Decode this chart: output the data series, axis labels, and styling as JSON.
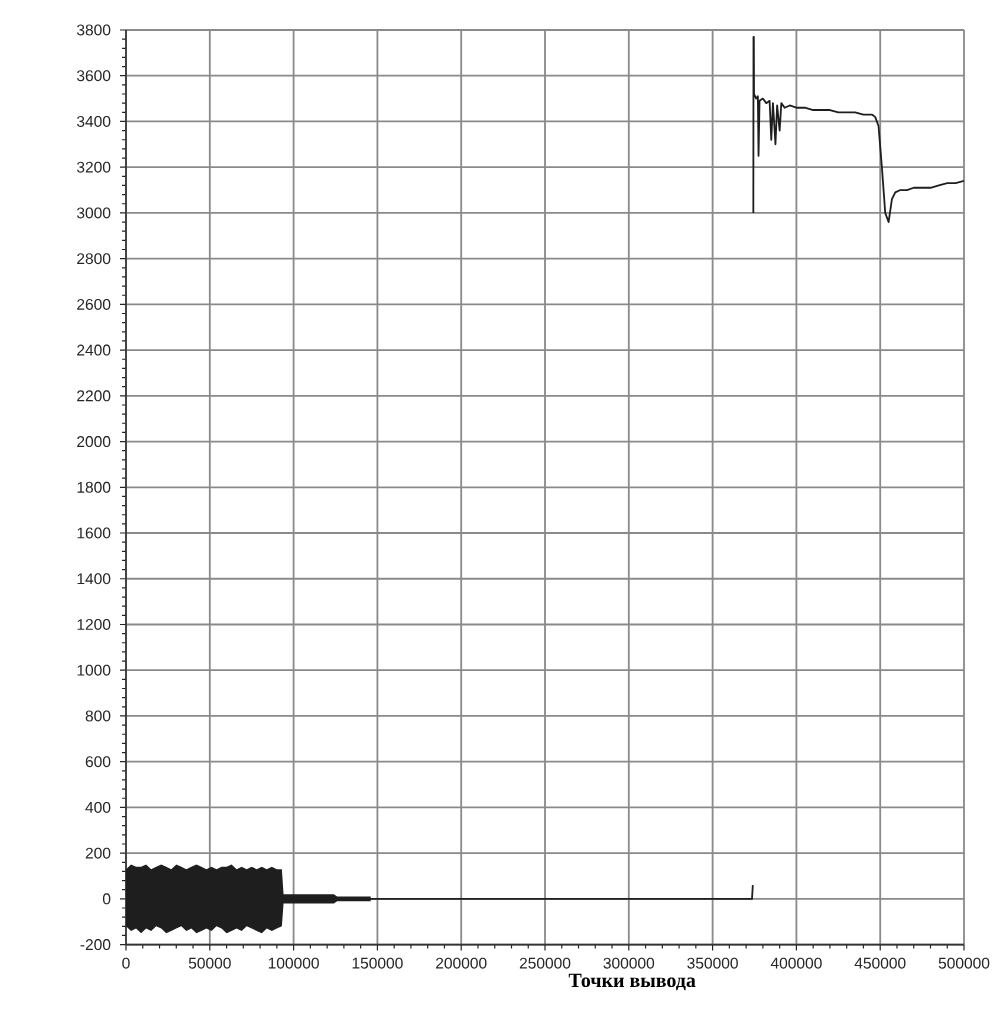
{
  "chart_data": {
    "type": "line",
    "xlabel": "Точки вывода",
    "x": [
      0,
      3000,
      6000,
      9000,
      12000,
      15000,
      18000,
      21000,
      24000,
      27000,
      30000,
      33000,
      36000,
      39000,
      42000,
      45000,
      48000,
      51000,
      54000,
      57000,
      60000,
      63000,
      66000,
      69000,
      72000,
      75000,
      78000,
      81000,
      84000,
      87000,
      90000,
      93000,
      94000,
      100000,
      106000,
      112000,
      118000,
      124000,
      126000,
      132000,
      138000,
      144000,
      146000,
      148000,
      170000,
      250000,
      373500,
      374000,
      374150,
      374300,
      374400,
      374600,
      374700,
      376000,
      377000,
      377400,
      378000,
      380000,
      382000,
      384000,
      385000,
      386000,
      387500,
      388500,
      390000,
      391000,
      393000,
      396000,
      400000,
      405000,
      410000,
      415000,
      420000,
      425000,
      430000,
      435000,
      440000,
      445000,
      447000,
      449000,
      451000,
      453000,
      455000,
      457000,
      459000,
      462000,
      466000,
      470000,
      475000,
      480000,
      485000,
      490000,
      495000,
      500000
    ],
    "series": [
      {
        "color": "#1e1e1e",
        "values": [
          0,
          0,
          0,
          0,
          0,
          0,
          0,
          0,
          0,
          0,
          0,
          0,
          0,
          0,
          0,
          0,
          0,
          0,
          0,
          0,
          0,
          0,
          0,
          0,
          0,
          0,
          0,
          0,
          0,
          0,
          0,
          0,
          0,
          0,
          0,
          0,
          0,
          0,
          0,
          0,
          0,
          0,
          0,
          0,
          0,
          0,
          0,
          60,
          null,
          3000,
          3770,
          3770,
          3520,
          3500,
          3510,
          3250,
          3490,
          3500,
          3480,
          3490,
          3320,
          3480,
          3300,
          3470,
          3360,
          3480,
          3460,
          3470,
          3460,
          3460,
          3450,
          3450,
          3450,
          3440,
          3440,
          3440,
          3430,
          3430,
          3420,
          3380,
          3200,
          3000,
          2960,
          3060,
          3090,
          3100,
          3100,
          3110,
          3110,
          3110,
          3120,
          3130,
          3130,
          3140
        ],
        "upper": [
          130,
          150,
          140,
          140,
          150,
          130,
          140,
          150,
          140,
          130,
          150,
          140,
          130,
          140,
          150,
          140,
          130,
          140,
          130,
          140,
          140,
          150,
          130,
          140,
          130,
          140,
          130,
          140,
          130,
          140,
          130,
          130,
          20,
          20,
          20,
          20,
          20,
          20,
          10,
          10,
          10,
          10,
          10,
          null,
          null,
          null,
          null,
          null,
          null,
          null,
          null,
          null,
          null,
          null,
          null,
          null,
          null,
          null,
          null,
          null,
          null,
          null,
          null,
          null,
          null,
          null,
          null,
          null,
          null,
          null,
          null,
          null,
          null,
          null,
          null,
          null,
          null,
          null,
          null,
          null,
          null,
          null,
          null,
          null,
          null,
          null,
          null,
          null,
          null,
          null,
          null,
          null,
          null,
          null
        ],
        "lower": [
          -120,
          -140,
          -130,
          -150,
          -130,
          -140,
          -120,
          -130,
          -150,
          -140,
          -130,
          -120,
          -140,
          -130,
          -150,
          -140,
          -130,
          -140,
          -120,
          -130,
          -150,
          -140,
          -130,
          -140,
          -120,
          -130,
          -140,
          -150,
          -130,
          -140,
          -130,
          -120,
          -20,
          -20,
          -20,
          -20,
          -20,
          -20,
          -10,
          -10,
          -10,
          -10,
          -10,
          null,
          null,
          null,
          null,
          null,
          null,
          null,
          null,
          null,
          null,
          null,
          null,
          null,
          null,
          null,
          null,
          null,
          null,
          null,
          null,
          null,
          null,
          null,
          null,
          null,
          null,
          null,
          null,
          null,
          null,
          null,
          null,
          null,
          null,
          null,
          null,
          null,
          null,
          null,
          null,
          null,
          null,
          null,
          null,
          null,
          null,
          null,
          null,
          null,
          null,
          null
        ]
      }
    ],
    "xlim": [
      0,
      500000
    ],
    "ylim": [
      -200,
      3800
    ],
    "xticks": [
      0,
      50000,
      100000,
      150000,
      200000,
      250000,
      300000,
      350000,
      400000,
      450000,
      500000
    ],
    "yticks": [
      -200,
      0,
      200,
      400,
      600,
      800,
      1000,
      1200,
      1400,
      1600,
      1800,
      2000,
      2200,
      2400,
      2600,
      2800,
      3000,
      3200,
      3400,
      3600,
      3800
    ],
    "grid": true
  }
}
